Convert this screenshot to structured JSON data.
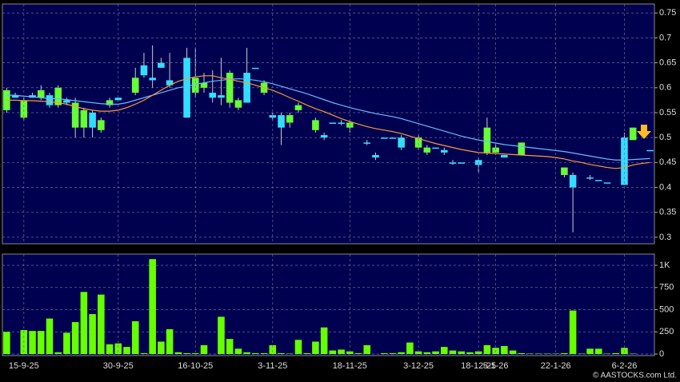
{
  "chart_data": [
    {
      "type": "candlestick",
      "ylim": [
        0.287,
        0.768
      ],
      "yticks": [
        0.3,
        0.35,
        0.4,
        0.45,
        0.5,
        0.55,
        0.6,
        0.65,
        0.7,
        0.75
      ],
      "grid": true,
      "up_color": "#66ff33",
      "down_color": "#33ddff",
      "wick_color": "#cccccc",
      "open": [
        0.555,
        0.585,
        0.54,
        0.585,
        0.58,
        0.585,
        0.565,
        0.575,
        0.52,
        0.52,
        0.55,
        0.515,
        0.565,
        0.58,
        null,
        0.59,
        0.645,
        0.62,
        0.65,
        0.615,
        null,
        0.66,
        0.59,
        0.6,
        0.59,
        0.585,
        0.57,
        0.56,
        0.63,
        0.64,
        0.59,
        0.545,
        0.545,
        0.53,
        0.555,
        null,
        0.515,
        0.505,
        0.53,
        0.53,
        0.52,
        null,
        0.49,
        0.465,
        0.5,
        0.5,
        0.5,
        null,
        0.48,
        0.47,
        0.48,
        0.475,
        0.45,
        0.45,
        null,
        0.455,
        0.47,
        0.47,
        0.465,
        null,
        0.465,
        null,
        null,
        null,
        null,
        0.425,
        0.425,
        null,
        0.42,
        0.415,
        0.41,
        null,
        0.5,
        0.495,
        null,
        0.475
      ],
      "high": [
        0.6,
        0.59,
        0.58,
        0.59,
        0.605,
        0.59,
        0.605,
        0.58,
        0.58,
        0.56,
        0.555,
        0.54,
        0.58,
        0.58,
        null,
        0.64,
        0.67,
        0.685,
        0.66,
        0.67,
        null,
        0.68,
        0.68,
        0.63,
        0.635,
        0.66,
        0.635,
        0.58,
        0.68,
        0.64,
        0.615,
        0.55,
        0.55,
        0.55,
        0.57,
        null,
        0.54,
        0.51,
        0.53,
        0.535,
        0.535,
        null,
        0.495,
        0.47,
        0.5,
        0.5,
        0.505,
        null,
        0.505,
        0.485,
        0.48,
        0.48,
        0.455,
        0.45,
        null,
        0.46,
        0.54,
        0.49,
        0.465,
        null,
        0.49,
        null,
        null,
        null,
        null,
        0.44,
        0.43,
        null,
        0.425,
        0.415,
        0.41,
        null,
        0.51,
        0.52,
        null,
        0.475
      ],
      "low": [
        0.55,
        0.58,
        0.535,
        0.58,
        0.575,
        0.56,
        0.56,
        0.565,
        0.5,
        0.5,
        0.5,
        0.51,
        0.56,
        0.575,
        null,
        0.585,
        0.62,
        0.6,
        0.64,
        0.6,
        null,
        0.54,
        0.58,
        0.59,
        0.57,
        0.565,
        0.56,
        0.555,
        0.57,
        0.64,
        0.585,
        0.535,
        0.485,
        0.52,
        0.55,
        null,
        0.51,
        0.495,
        0.53,
        0.525,
        0.51,
        null,
        0.485,
        0.455,
        0.5,
        0.5,
        0.475,
        null,
        0.475,
        0.465,
        0.48,
        0.465,
        0.445,
        0.45,
        null,
        0.43,
        0.465,
        0.465,
        0.46,
        null,
        0.465,
        null,
        null,
        null,
        null,
        0.42,
        0.31,
        null,
        0.415,
        0.415,
        0.41,
        null,
        0.405,
        0.495,
        null,
        0.475
      ],
      "close": [
        0.595,
        0.58,
        0.575,
        0.58,
        0.595,
        0.565,
        0.6,
        0.57,
        0.57,
        0.555,
        0.52,
        0.535,
        0.575,
        0.575,
        null,
        0.62,
        0.625,
        0.615,
        0.64,
        0.605,
        null,
        0.54,
        0.62,
        0.61,
        0.58,
        0.58,
        0.63,
        0.575,
        0.57,
        0.64,
        0.61,
        0.54,
        0.52,
        0.545,
        0.565,
        null,
        0.535,
        0.5,
        0.53,
        0.53,
        0.53,
        null,
        0.49,
        0.46,
        0.5,
        0.5,
        0.48,
        null,
        0.5,
        0.48,
        0.48,
        0.47,
        0.45,
        0.45,
        null,
        0.445,
        0.52,
        0.48,
        0.46,
        null,
        0.49,
        null,
        null,
        null,
        null,
        0.44,
        0.4,
        null,
        0.42,
        0.415,
        0.41,
        null,
        0.405,
        0.52,
        null,
        0.475
      ],
      "lines": [
        {
          "color": "#66bbff",
          "values": [
            0.585,
            0.585,
            0.583,
            0.582,
            0.58,
            0.578,
            0.578,
            0.576,
            0.574,
            0.572,
            0.57,
            0.568,
            0.567,
            0.567,
            0.57,
            0.575,
            0.58,
            0.585,
            0.59,
            0.595,
            0.6,
            0.603,
            0.607,
            0.61,
            0.613,
            0.615,
            0.617,
            0.618,
            0.617,
            0.615,
            0.612,
            0.608,
            0.603,
            0.598,
            0.593,
            0.588,
            0.582,
            0.576,
            0.57,
            0.565,
            0.56,
            0.556,
            0.552,
            0.548,
            0.545,
            0.542,
            0.538,
            0.533,
            0.528,
            0.523,
            0.518,
            0.513,
            0.508,
            0.503,
            0.499,
            0.495,
            0.492,
            0.489,
            0.486,
            0.484,
            0.482,
            0.48,
            0.478,
            0.476,
            0.474,
            0.472,
            0.469,
            0.466,
            0.463,
            0.46,
            0.457,
            0.455,
            0.455,
            0.456,
            0.457,
            0.458
          ]
        },
        {
          "color": "#ff9933",
          "values": [
            0.575,
            0.575,
            0.574,
            0.574,
            0.573,
            0.572,
            0.57,
            0.567,
            0.562,
            0.558,
            0.555,
            0.553,
            0.553,
            0.555,
            0.56,
            0.567,
            0.575,
            0.585,
            0.595,
            0.605,
            0.613,
            0.618,
            0.622,
            0.624,
            0.624,
            0.62,
            0.617,
            0.613,
            0.61,
            0.605,
            0.6,
            0.595,
            0.588,
            0.58,
            0.573,
            0.565,
            0.558,
            0.552,
            0.545,
            0.538,
            0.532,
            0.527,
            0.522,
            0.518,
            0.515,
            0.512,
            0.508,
            0.503,
            0.498,
            0.493,
            0.488,
            0.484,
            0.48,
            0.476,
            0.473,
            0.47,
            0.469,
            0.468,
            0.467,
            0.466,
            0.465,
            0.464,
            0.463,
            0.462,
            0.46,
            0.457,
            0.453,
            0.45,
            0.446,
            0.443,
            0.44,
            0.438,
            0.44,
            0.445,
            0.448,
            0.45
          ]
        }
      ]
    },
    {
      "type": "bar",
      "color": "#66ff00",
      "ylim": [
        -18,
        1126
      ],
      "yticks": [
        0,
        250,
        500,
        750,
        {
          "value": 1000,
          "label": "1K"
        }
      ],
      "grid": true,
      "categories": [
        null,
        null,
        "15-9-25",
        null,
        null,
        null,
        null,
        null,
        null,
        null,
        null,
        null,
        null,
        "30-9-25",
        null,
        null,
        null,
        null,
        null,
        null,
        null,
        null,
        "16-10-25",
        null,
        null,
        null,
        null,
        null,
        null,
        null,
        null,
        "3-11-25",
        null,
        null,
        null,
        null,
        null,
        null,
        null,
        null,
        "18-11-25",
        null,
        null,
        null,
        null,
        null,
        null,
        null,
        "3-12-25",
        null,
        null,
        null,
        null,
        null,
        null,
        "18-12-25",
        null,
        "5-1-26",
        null,
        null,
        null,
        null,
        null,
        null,
        "22-1-26",
        null,
        null,
        null,
        null,
        null,
        null,
        null,
        "6-2-26",
        null,
        null,
        null
      ],
      "values": [
        250,
        0,
        270,
        260,
        260,
        400,
        20,
        240,
        360,
        700,
        450,
        670,
        110,
        120,
        80,
        370,
        10,
        1070,
        140,
        280,
        20,
        10,
        10,
        100,
        0,
        420,
        170,
        60,
        20,
        10,
        10,
        100,
        10,
        5,
        160,
        10,
        140,
        300,
        40,
        50,
        30,
        10,
        100,
        0,
        10,
        10,
        20,
        130,
        30,
        20,
        30,
        80,
        40,
        30,
        20,
        30,
        100,
        70,
        90,
        40,
        10,
        5,
        5,
        5,
        5,
        10,
        490,
        5,
        60,
        60,
        5,
        10,
        70,
        5,
        0,
        0
      ]
    }
  ],
  "credit": "© AASTOCKS.com Ltd."
}
